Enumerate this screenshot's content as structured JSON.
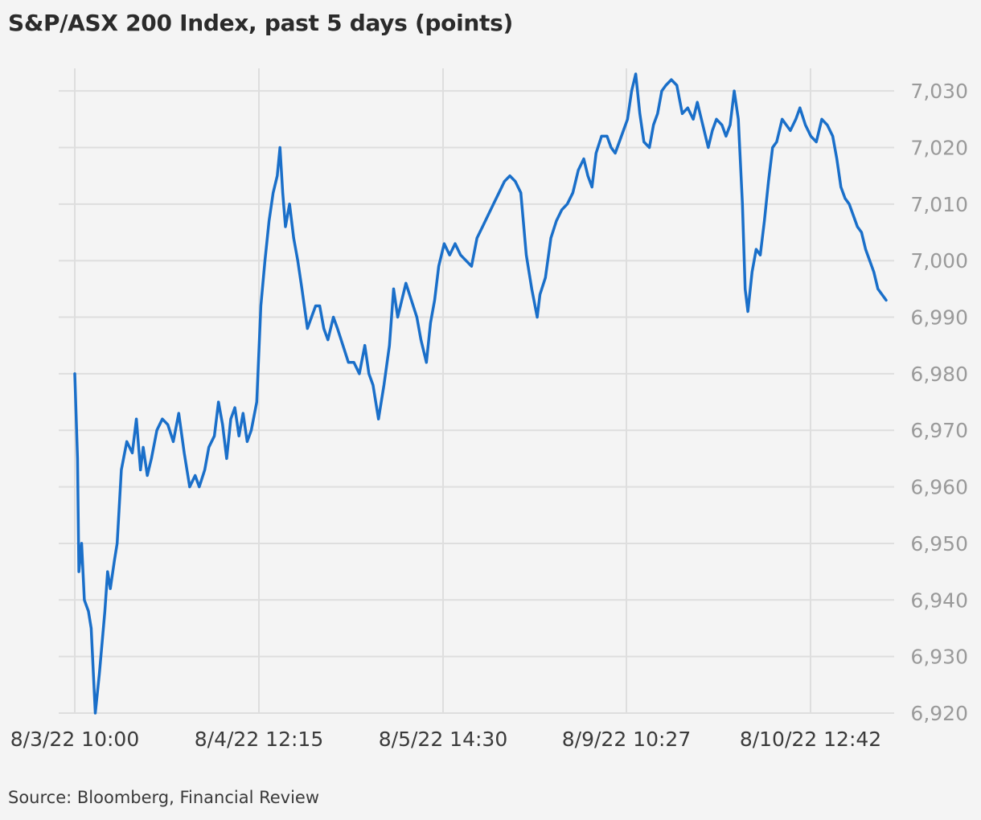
{
  "chart_data": {
    "type": "line",
    "title": "S&P/ASX 200 Index, past 5 days (points)",
    "source": "Source: Bloomberg, Financial Review",
    "xlabel": "",
    "ylabel": "",
    "x_ticks": [
      "8/3/22 10:00",
      "8/4/22 12:15",
      "8/5/22 14:30",
      "8/9/22 10:27",
      "8/10/22 12:42"
    ],
    "y_ticks": [
      6920,
      6930,
      6940,
      6950,
      6960,
      6970,
      6980,
      6990,
      7000,
      7010,
      7020,
      7030
    ],
    "y_tick_labels": [
      "6,920",
      "6,930",
      "6,940",
      "6,950",
      "6,960",
      "6,970",
      "6,980",
      "6,990",
      "7,000",
      "7,010",
      "7,020",
      "7,030"
    ],
    "ylim": [
      6920,
      7034
    ],
    "grid": true,
    "line_color": "#1a6fc9",
    "series": [
      {
        "points": [
          [
            0,
            6980
          ],
          [
            4,
            6965
          ],
          [
            6,
            6945
          ],
          [
            10,
            6950
          ],
          [
            14,
            6940
          ],
          [
            20,
            6938
          ],
          [
            24,
            6935
          ],
          [
            30,
            6920
          ],
          [
            36,
            6927
          ],
          [
            44,
            6938
          ],
          [
            48,
            6945
          ],
          [
            52,
            6942
          ],
          [
            58,
            6947
          ],
          [
            62,
            6950
          ],
          [
            68,
            6963
          ],
          [
            76,
            6968
          ],
          [
            84,
            6966
          ],
          [
            90,
            6972
          ],
          [
            96,
            6963
          ],
          [
            100,
            6967
          ],
          [
            106,
            6962
          ],
          [
            112,
            6965
          ],
          [
            120,
            6970
          ],
          [
            128,
            6972
          ],
          [
            136,
            6971
          ],
          [
            144,
            6968
          ],
          [
            152,
            6973
          ],
          [
            160,
            6966
          ],
          [
            168,
            6960
          ],
          [
            176,
            6962
          ],
          [
            182,
            6960
          ],
          [
            190,
            6963
          ],
          [
            196,
            6967
          ],
          [
            204,
            6969
          ],
          [
            210,
            6975
          ],
          [
            216,
            6971
          ],
          [
            222,
            6965
          ],
          [
            228,
            6972
          ],
          [
            234,
            6974
          ],
          [
            240,
            6969
          ],
          [
            246,
            6973
          ],
          [
            252,
            6968
          ],
          [
            258,
            6970
          ],
          [
            266,
            6975
          ],
          [
            272,
            6992
          ],
          [
            278,
            7000
          ],
          [
            284,
            7007
          ],
          [
            290,
            7012
          ],
          [
            296,
            7015
          ],
          [
            300,
            7020
          ],
          [
            304,
            7012
          ],
          [
            308,
            7006
          ],
          [
            314,
            7010
          ],
          [
            320,
            7004
          ],
          [
            326,
            7000
          ],
          [
            332,
            6995
          ],
          [
            340,
            6988
          ],
          [
            346,
            6990
          ],
          [
            352,
            6992
          ],
          [
            358,
            6992
          ],
          [
            364,
            6988
          ],
          [
            370,
            6986
          ],
          [
            378,
            6990
          ],
          [
            384,
            6988
          ],
          [
            392,
            6985
          ],
          [
            400,
            6982
          ],
          [
            408,
            6982
          ],
          [
            416,
            6980
          ],
          [
            424,
            6985
          ],
          [
            430,
            6980
          ],
          [
            436,
            6978
          ],
          [
            444,
            6972
          ],
          [
            452,
            6978
          ],
          [
            460,
            6985
          ],
          [
            466,
            6995
          ],
          [
            472,
            6990
          ],
          [
            478,
            6993
          ],
          [
            484,
            6996
          ],
          [
            492,
            6993
          ],
          [
            500,
            6990
          ],
          [
            506,
            6986
          ],
          [
            514,
            6982
          ],
          [
            520,
            6989
          ],
          [
            526,
            6993
          ],
          [
            532,
            6999
          ],
          [
            540,
            7003
          ],
          [
            548,
            7001
          ],
          [
            556,
            7003
          ],
          [
            564,
            7001
          ],
          [
            572,
            7000
          ],
          [
            580,
            6999
          ],
          [
            588,
            7004
          ],
          [
            596,
            7006
          ],
          [
            604,
            7008
          ],
          [
            612,
            7010
          ],
          [
            620,
            7012
          ],
          [
            628,
            7014
          ],
          [
            636,
            7015
          ],
          [
            644,
            7014
          ],
          [
            652,
            7012
          ],
          [
            660,
            7001
          ],
          [
            668,
            6995
          ],
          [
            676,
            6990
          ],
          [
            680,
            6994
          ],
          [
            688,
            6997
          ],
          [
            696,
            7004
          ],
          [
            704,
            7007
          ],
          [
            712,
            7009
          ],
          [
            720,
            7010
          ],
          [
            728,
            7012
          ],
          [
            736,
            7016
          ],
          [
            744,
            7018
          ],
          [
            750,
            7015
          ],
          [
            756,
            7013
          ],
          [
            762,
            7019
          ],
          [
            770,
            7022
          ],
          [
            778,
            7022
          ],
          [
            784,
            7020
          ],
          [
            790,
            7019
          ],
          [
            796,
            7021
          ],
          [
            802,
            7023
          ],
          [
            808,
            7025
          ],
          [
            814,
            7030
          ],
          [
            820,
            7033
          ],
          [
            826,
            7026
          ],
          [
            832,
            7021
          ],
          [
            840,
            7020
          ],
          [
            846,
            7024
          ],
          [
            852,
            7026
          ],
          [
            858,
            7030
          ],
          [
            864,
            7031
          ],
          [
            872,
            7032
          ],
          [
            880,
            7031
          ],
          [
            888,
            7026
          ],
          [
            896,
            7027
          ],
          [
            904,
            7025
          ],
          [
            910,
            7028
          ],
          [
            918,
            7024
          ],
          [
            926,
            7020
          ],
          [
            932,
            7023
          ],
          [
            938,
            7025
          ],
          [
            946,
            7024
          ],
          [
            952,
            7022
          ],
          [
            958,
            7024
          ],
          [
            964,
            7030
          ],
          [
            970,
            7025
          ],
          [
            976,
            7010
          ],
          [
            980,
            6995
          ],
          [
            984,
            6991
          ],
          [
            990,
            6998
          ],
          [
            996,
            7002
          ],
          [
            1002,
            7001
          ],
          [
            1008,
            7007
          ],
          [
            1014,
            7014
          ],
          [
            1020,
            7020
          ],
          [
            1026,
            7021
          ],
          [
            1034,
            7025
          ],
          [
            1040,
            7024
          ],
          [
            1046,
            7023
          ],
          [
            1054,
            7025
          ],
          [
            1060,
            7027
          ],
          [
            1068,
            7024
          ],
          [
            1076,
            7022
          ],
          [
            1084,
            7021
          ],
          [
            1092,
            7025
          ],
          [
            1100,
            7024
          ],
          [
            1108,
            7022
          ],
          [
            1114,
            7018
          ],
          [
            1120,
            7013
          ],
          [
            1126,
            7011
          ],
          [
            1132,
            7010
          ],
          [
            1138,
            7008
          ],
          [
            1144,
            7006
          ],
          [
            1150,
            7005
          ],
          [
            1156,
            7002
          ],
          [
            1162,
            7000
          ],
          [
            1168,
            6998
          ],
          [
            1174,
            6995
          ],
          [
            1180,
            6994
          ],
          [
            1186,
            6993
          ]
        ]
      }
    ]
  }
}
